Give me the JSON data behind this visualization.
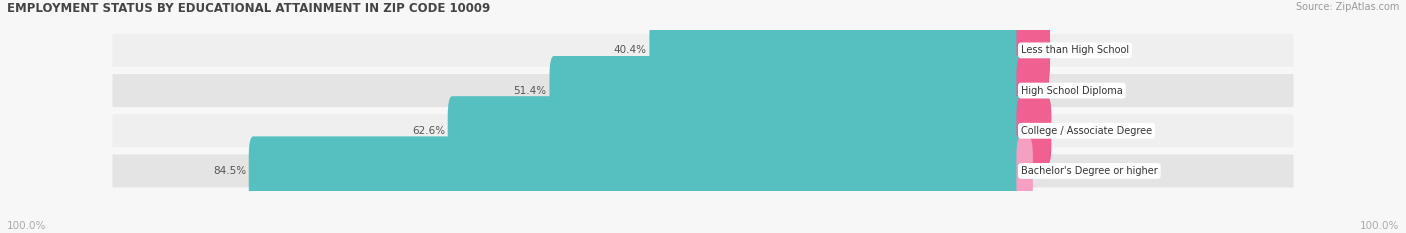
{
  "title": "EMPLOYMENT STATUS BY EDUCATIONAL ATTAINMENT IN ZIP CODE 10009",
  "source": "Source: ZipAtlas.com",
  "categories": [
    "Less than High School",
    "High School Diploma",
    "College / Associate Degree",
    "Bachelor's Degree or higher"
  ],
  "labor_force": [
    40.4,
    51.4,
    62.6,
    84.5
  ],
  "unemployed": [
    9.0,
    8.6,
    9.5,
    2.7
  ],
  "labor_force_color": "#56bfbf",
  "unemployed_colors": [
    "#f06090",
    "#f06090",
    "#f06090",
    "#f5a0c0"
  ],
  "row_bg_even": "#efefef",
  "row_bg_odd": "#e4e4e4",
  "label_color": "#555555",
  "title_color": "#444444",
  "source_color": "#999999",
  "axis_label_color": "#aaaaaa",
  "legend_labor_color": "#56bfbf",
  "legend_unemployed_color": "#f06090",
  "x_left_label": "100.0%",
  "x_right_label": "100.0%",
  "max_lf": 100.0,
  "max_unemp": 100.0,
  "figsize": [
    14.06,
    2.33
  ],
  "dpi": 100
}
